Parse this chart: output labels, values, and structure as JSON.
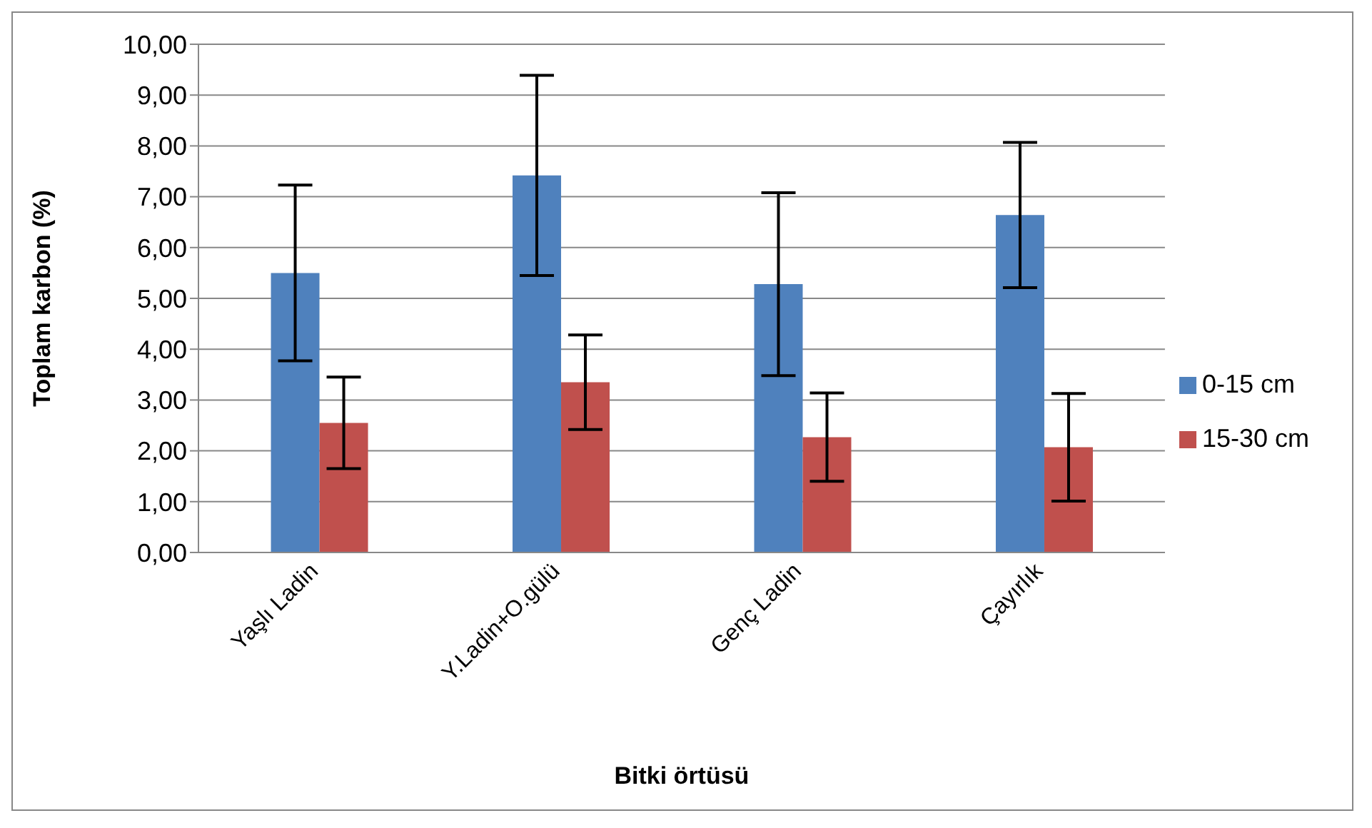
{
  "chart_data": {
    "type": "bar",
    "xlabel": "Bitki örtüsü",
    "ylabel": "Toplam karbon (%)",
    "categories": [
      "Yaşlı Ladin",
      "Y.Ladin+O.gülü",
      "Genç Ladin",
      "Çayırlık"
    ],
    "series": [
      {
        "name": "0-15 cm",
        "color": "#4f81bd",
        "values": [
          5.5,
          7.42,
          5.28,
          6.64
        ],
        "errors": [
          1.73,
          1.97,
          1.8,
          1.43
        ]
      },
      {
        "name": "15-30 cm",
        "color": "#c0504d",
        "values": [
          2.55,
          3.35,
          2.27,
          2.07
        ],
        "errors": [
          0.9,
          0.93,
          0.87,
          1.06
        ]
      }
    ],
    "ylim": [
      0,
      10
    ],
    "yticks": [
      {
        "value": 0,
        "label": "0,00"
      },
      {
        "value": 1,
        "label": "1,00"
      },
      {
        "value": 2,
        "label": "2,00"
      },
      {
        "value": 3,
        "label": "3,00"
      },
      {
        "value": 4,
        "label": "4,00"
      },
      {
        "value": 5,
        "label": "5,00"
      },
      {
        "value": 6,
        "label": "6,00"
      },
      {
        "value": 7,
        "label": "7,00"
      },
      {
        "value": 8,
        "label": "8,00"
      },
      {
        "value": 9,
        "label": "9,00"
      },
      {
        "value": 10,
        "label": "10,00"
      }
    ],
    "grid": "y",
    "legend": "right"
  }
}
